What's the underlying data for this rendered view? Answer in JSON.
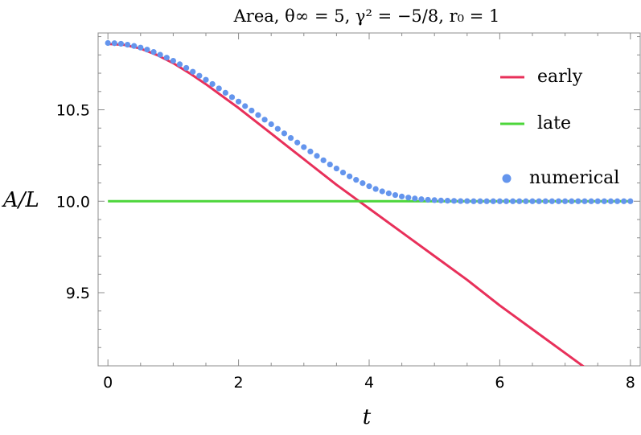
{
  "chart_data": {
    "type": "line",
    "title": "Area, θ∞ = 5, γ² = −5/8, r₀ = 1",
    "xlabel": "t",
    "ylabel": "A/L",
    "xlim": [
      -0.15,
      8.15
    ],
    "ylim": [
      9.1,
      10.92
    ],
    "x_ticks": [
      0,
      2,
      4,
      6,
      8
    ],
    "y_ticks": [
      9.5,
      10.0,
      10.5
    ],
    "x_tick_labels": [
      "0",
      "2",
      "4",
      "6",
      "8"
    ],
    "y_tick_labels": [
      "9.5",
      "10.0",
      "10.5"
    ],
    "legend_position": "top-right",
    "grid": false,
    "series": [
      {
        "name": "early",
        "kind": "line",
        "color": "#e8305a",
        "x": [
          0,
          0.25,
          0.5,
          0.75,
          1.0,
          1.25,
          1.5,
          1.75,
          2.0,
          2.25,
          2.5,
          2.75,
          3.0,
          3.5,
          4.0,
          4.5,
          5.0,
          5.5,
          6.0,
          6.5,
          7.0,
          7.5,
          8.0
        ],
        "y": [
          10.86,
          10.855,
          10.835,
          10.8,
          10.755,
          10.7,
          10.64,
          10.575,
          10.51,
          10.44,
          10.37,
          10.3,
          10.23,
          10.09,
          9.96,
          9.83,
          9.7,
          9.57,
          9.43,
          9.3,
          9.17,
          9.04,
          8.91
        ]
      },
      {
        "name": "late",
        "kind": "line",
        "color": "#4cd63a",
        "x": [
          0,
          8
        ],
        "y": [
          10.0,
          10.0
        ]
      },
      {
        "name": "numerical",
        "kind": "scatter",
        "color": "#6495ed",
        "x": [
          0,
          0.1,
          0.2,
          0.3,
          0.4,
          0.5,
          0.6,
          0.7,
          0.8,
          0.9,
          1.0,
          1.1,
          1.2,
          1.3,
          1.4,
          1.5,
          1.6,
          1.7,
          1.8,
          1.9,
          2.0,
          2.1,
          2.2,
          2.3,
          2.4,
          2.5,
          2.6,
          2.7,
          2.8,
          2.9,
          3.0,
          3.1,
          3.2,
          3.3,
          3.4,
          3.5,
          3.6,
          3.7,
          3.8,
          3.9,
          4.0,
          4.1,
          4.2,
          4.3,
          4.4,
          4.5,
          4.6,
          4.7,
          4.8,
          4.9,
          5.0,
          5.1,
          5.2,
          5.3,
          5.4,
          5.5,
          5.6,
          5.7,
          5.8,
          5.9,
          6.0,
          6.1,
          6.2,
          6.3,
          6.4,
          6.5,
          6.6,
          6.7,
          6.8,
          6.9,
          7.0,
          7.1,
          7.2,
          7.3,
          7.4,
          7.5,
          7.6,
          7.7,
          7.8,
          7.9,
          8.0
        ],
        "y": [
          10.865,
          10.864,
          10.861,
          10.856,
          10.849,
          10.84,
          10.829,
          10.816,
          10.801,
          10.785,
          10.768,
          10.749,
          10.729,
          10.708,
          10.686,
          10.664,
          10.641,
          10.617,
          10.593,
          10.569,
          10.545,
          10.52,
          10.496,
          10.471,
          10.446,
          10.421,
          10.396,
          10.371,
          10.346,
          10.321,
          10.296,
          10.272,
          10.248,
          10.224,
          10.201,
          10.179,
          10.157,
          10.136,
          10.117,
          10.099,
          10.082,
          10.067,
          10.054,
          10.043,
          10.034,
          10.026,
          10.02,
          10.015,
          10.011,
          10.008,
          10.006,
          10.004,
          10.003,
          10.002,
          10.001,
          10.001,
          10.0,
          10.0,
          10.0,
          10.0,
          10.0,
          10.0,
          10.0,
          10.0,
          10.0,
          10.0,
          10.0,
          10.0,
          10.0,
          10.0,
          10.0,
          10.0,
          10.0,
          10.0,
          10.0,
          10.0,
          10.0,
          10.0,
          10.0,
          10.0,
          10.0
        ]
      }
    ]
  }
}
